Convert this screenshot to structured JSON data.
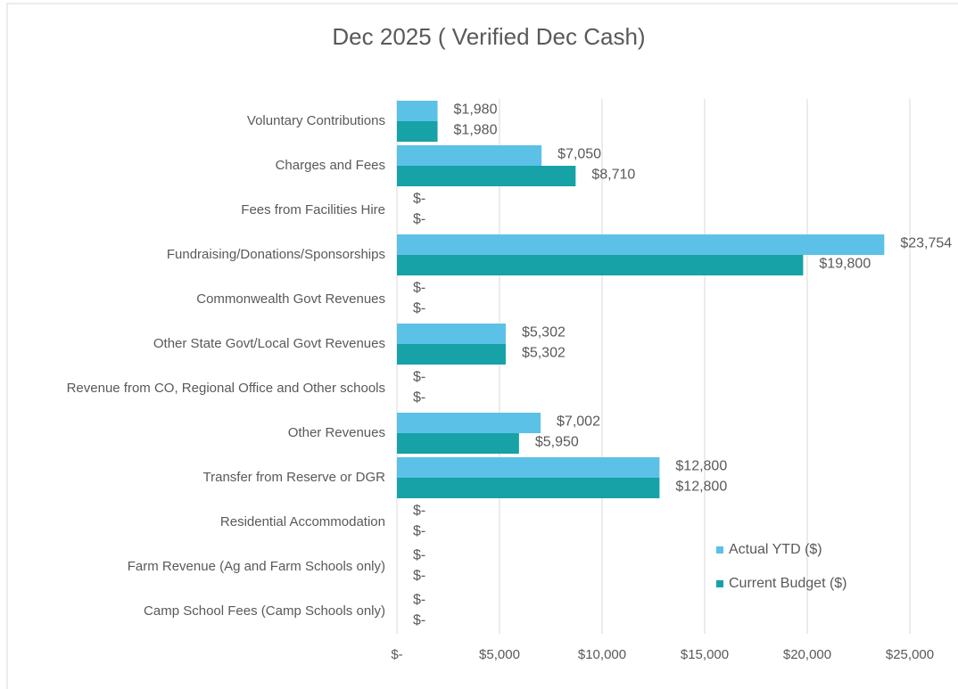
{
  "chart_data": {
    "type": "bar",
    "orientation": "horizontal",
    "title": "Dec 2025 ( Verified Dec Cash)",
    "categories": [
      "Voluntary Contributions",
      "Charges and Fees",
      "Fees from Facilities Hire",
      "Fundraising/Donations/Sponsorships",
      "Commonwealth Govt Revenues",
      "Other State Govt/Local Govt Revenues",
      "Revenue from CO, Regional Office and Other schools",
      "Other Revenues",
      "Transfer from Reserve or DGR",
      "Residential Accommodation",
      "Farm Revenue (Ag and Farm Schools only)",
      "Camp School Fees (Camp Schools only)"
    ],
    "series": [
      {
        "name": "Actual YTD ($)",
        "color": "#5bc1e6",
        "values": [
          1980,
          7050,
          0,
          23754,
          0,
          5302,
          0,
          7002,
          12800,
          0,
          0,
          0
        ],
        "value_labels": [
          "$1,980",
          "$7,050",
          "$-",
          "$23,754",
          "$-",
          "$5,302",
          "$-",
          "$7,002",
          "$12,800",
          "$-",
          "$-",
          "$-"
        ]
      },
      {
        "name": "Current Budget ($)",
        "color": "#16a2a6",
        "values": [
          1980,
          8710,
          0,
          19800,
          0,
          5302,
          0,
          5950,
          12800,
          0,
          0,
          0
        ],
        "value_labels": [
          "$1,980",
          "$8,710",
          "$-",
          "$19,800",
          "$-",
          "$5,302",
          "$-",
          "$5,950",
          "$12,800",
          "$-",
          "$-",
          "$-"
        ]
      }
    ],
    "xlim": [
      0,
      25000
    ],
    "xticks": [
      {
        "value": 0,
        "label": "$-"
      },
      {
        "value": 5000,
        "label": "$5,000"
      },
      {
        "value": 10000,
        "label": "$10,000"
      },
      {
        "value": 15000,
        "label": "$15,000"
      },
      {
        "value": 20000,
        "label": "$20,000"
      },
      {
        "value": 25000,
        "label": "$25,000"
      }
    ],
    "grid": true,
    "legend": "lower right"
  }
}
